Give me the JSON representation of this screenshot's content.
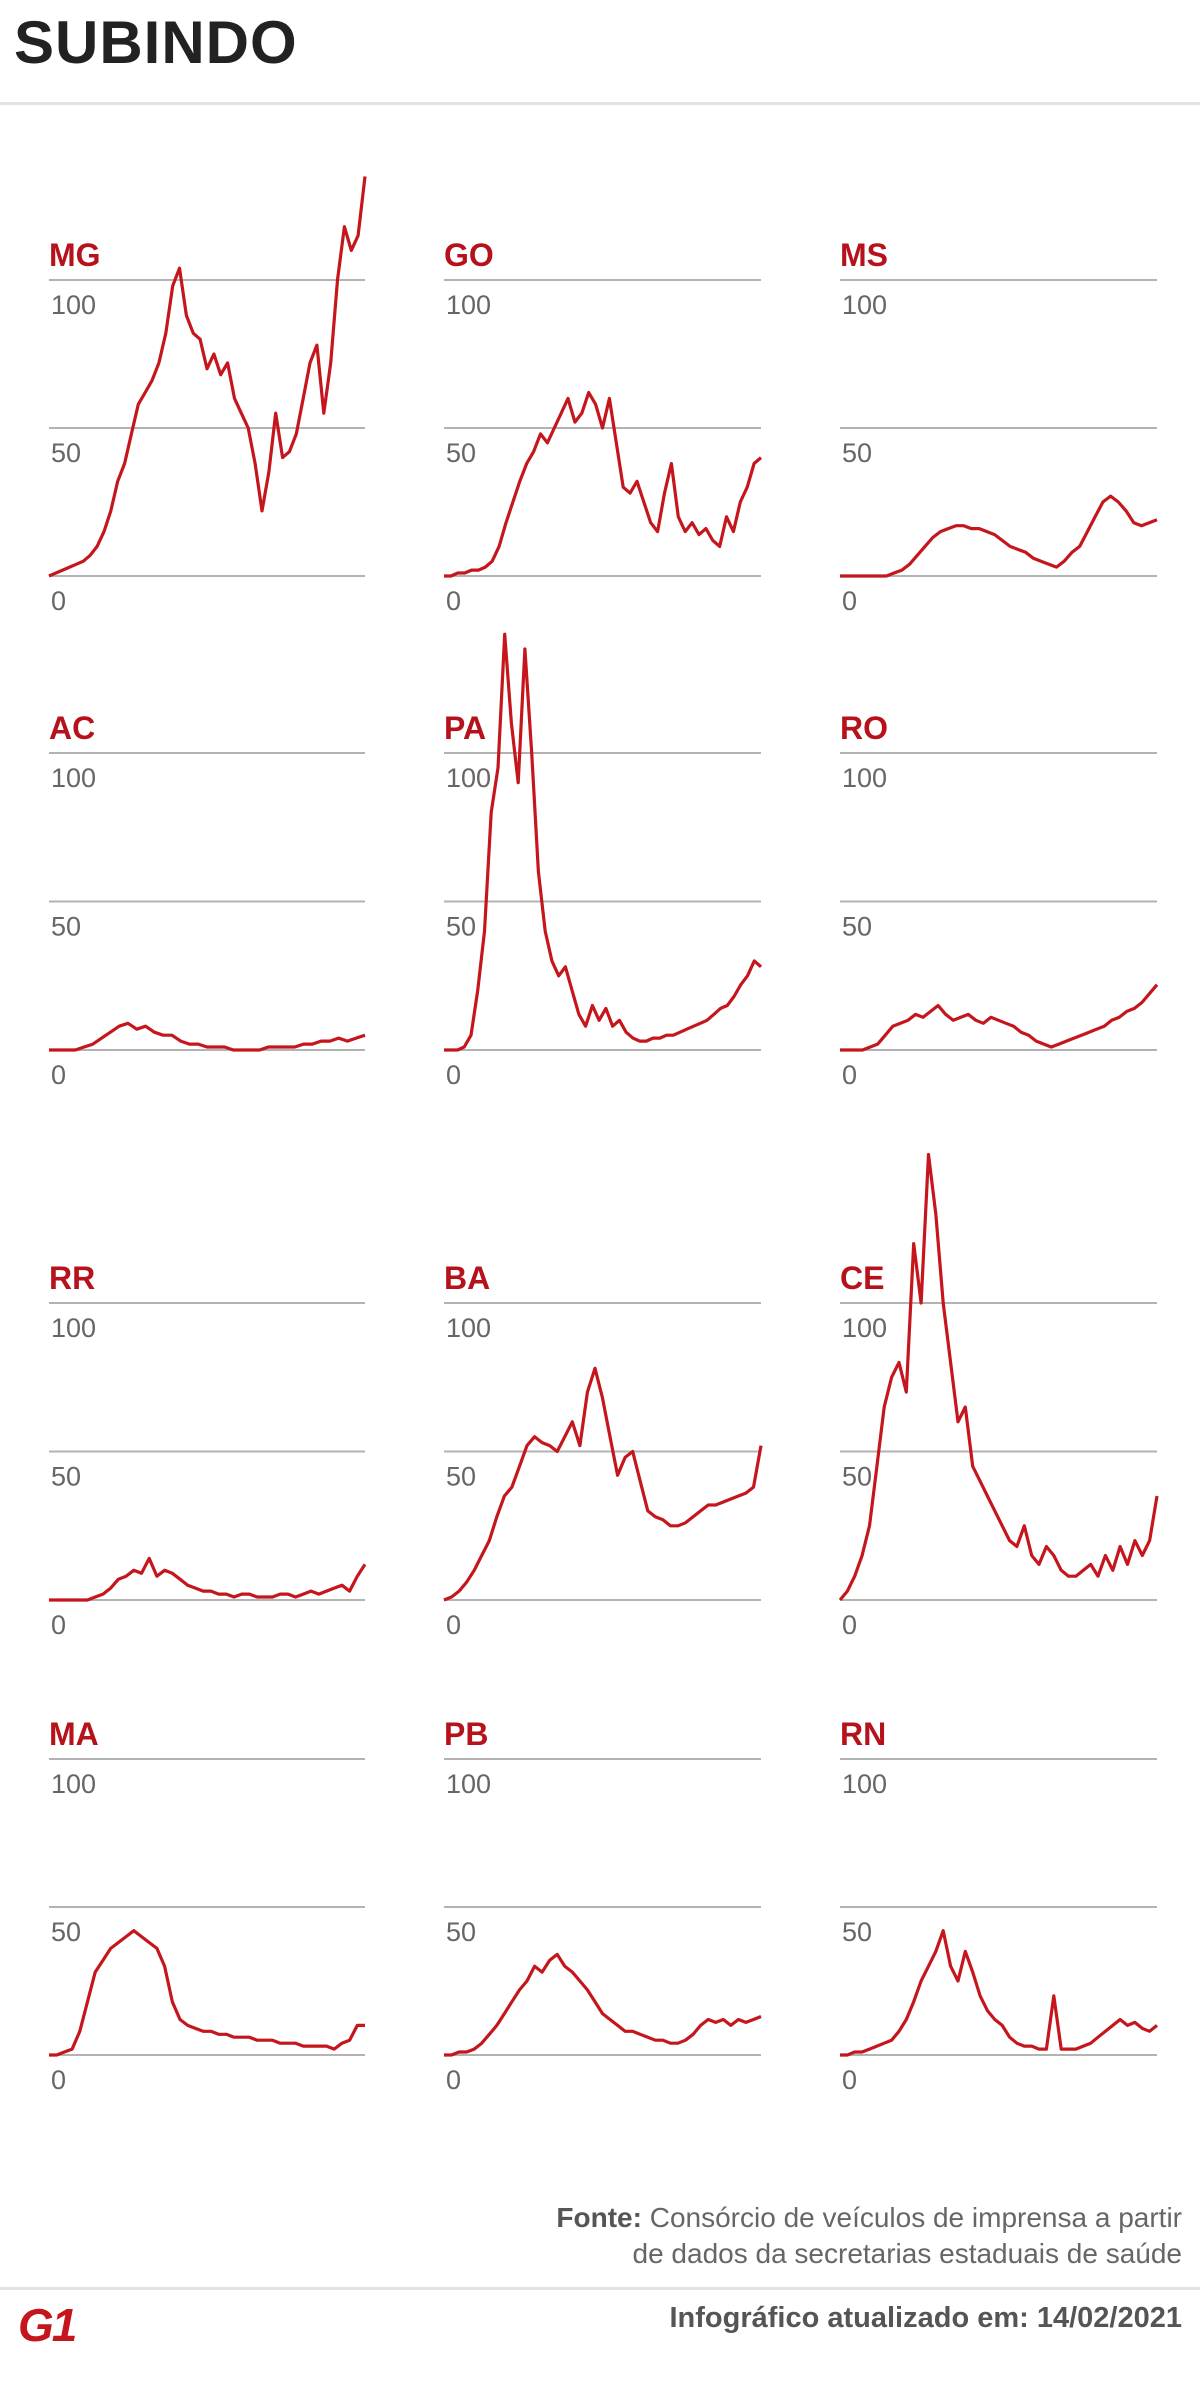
{
  "header": {
    "title": "SUBINDO"
  },
  "footer": {
    "source_label": "Fonte:",
    "source_lines": [
      "Consórcio de veículos de imprensa a partir",
      "de dados da secretarias estaduais de saúde"
    ],
    "updated": "Infográfico atualizado em: 14/02/2021",
    "logo": "G1"
  },
  "chart_data": [
    {
      "type": "line",
      "title": "MG",
      "color": "#c4161c",
      "ylim": [
        0,
        100
      ],
      "yticks": [
        0,
        50,
        100
      ],
      "values": [
        0,
        1,
        2,
        3,
        4,
        5,
        7,
        10,
        15,
        22,
        32,
        38,
        48,
        58,
        62,
        66,
        72,
        82,
        98,
        104,
        88,
        82,
        80,
        70,
        75,
        68,
        72,
        60,
        55,
        50,
        38,
        22,
        35,
        55,
        40,
        42,
        48,
        60,
        72,
        78,
        55,
        72,
        100,
        118,
        110,
        115,
        135
      ]
    },
    {
      "type": "line",
      "title": "GO",
      "color": "#c4161c",
      "ylim": [
        0,
        100
      ],
      "yticks": [
        0,
        50,
        100
      ],
      "values": [
        0,
        0,
        1,
        1,
        2,
        2,
        3,
        5,
        10,
        18,
        25,
        32,
        38,
        42,
        48,
        45,
        50,
        55,
        60,
        52,
        55,
        62,
        58,
        50,
        60,
        45,
        30,
        28,
        32,
        25,
        18,
        15,
        28,
        38,
        20,
        15,
        18,
        14,
        16,
        12,
        10,
        20,
        15,
        25,
        30,
        38,
        40
      ]
    },
    {
      "type": "line",
      "title": "MS",
      "color": "#c4161c",
      "ylim": [
        0,
        100
      ],
      "yticks": [
        0,
        50,
        100
      ],
      "values": [
        0,
        0,
        0,
        0,
        0,
        0,
        0,
        1,
        2,
        4,
        7,
        10,
        13,
        15,
        16,
        17,
        17,
        16,
        16,
        15,
        14,
        12,
        10,
        9,
        8,
        6,
        5,
        4,
        3,
        5,
        8,
        10,
        15,
        20,
        25,
        27,
        25,
        22,
        18,
        17,
        18,
        19
      ]
    },
    {
      "type": "line",
      "title": "AC",
      "color": "#c4161c",
      "ylim": [
        0,
        100
      ],
      "yticks": [
        0,
        50,
        100
      ],
      "values": [
        0,
        0,
        0,
        0,
        1,
        2,
        4,
        6,
        8,
        9,
        7,
        8,
        6,
        5,
        5,
        3,
        2,
        2,
        1,
        1,
        1,
        0,
        0,
        0,
        0,
        1,
        1,
        1,
        1,
        2,
        2,
        3,
        3,
        4,
        3,
        4,
        5
      ]
    },
    {
      "type": "line",
      "title": "PA",
      "color": "#c4161c",
      "ylim": [
        0,
        100
      ],
      "yticks": [
        0,
        50,
        100
      ],
      "values": [
        0,
        0,
        0,
        1,
        5,
        20,
        40,
        80,
        95,
        140,
        110,
        90,
        135,
        100,
        60,
        40,
        30,
        25,
        28,
        20,
        12,
        8,
        15,
        10,
        14,
        8,
        10,
        6,
        4,
        3,
        3,
        4,
        4,
        5,
        5,
        6,
        7,
        8,
        9,
        10,
        12,
        14,
        15,
        18,
        22,
        25,
        30,
        28
      ]
    },
    {
      "type": "line",
      "title": "RO",
      "color": "#c4161c",
      "ylim": [
        0,
        100
      ],
      "yticks": [
        0,
        50,
        100
      ],
      "values": [
        0,
        0,
        0,
        0,
        1,
        2,
        5,
        8,
        9,
        10,
        12,
        11,
        13,
        15,
        12,
        10,
        11,
        12,
        10,
        9,
        11,
        10,
        9,
        8,
        6,
        5,
        3,
        2,
        1,
        2,
        3,
        4,
        5,
        6,
        7,
        8,
        10,
        11,
        13,
        14,
        16,
        19,
        22
      ]
    },
    {
      "type": "line",
      "title": "RR",
      "color": "#c4161c",
      "ylim": [
        0,
        100
      ],
      "yticks": [
        0,
        50,
        100
      ],
      "values": [
        0,
        0,
        0,
        0,
        0,
        0,
        1,
        2,
        4,
        7,
        8,
        10,
        9,
        14,
        8,
        10,
        9,
        7,
        5,
        4,
        3,
        3,
        2,
        2,
        1,
        2,
        2,
        1,
        1,
        1,
        2,
        2,
        1,
        2,
        3,
        2,
        3,
        4,
        5,
        3,
        8,
        12
      ]
    },
    {
      "type": "line",
      "title": "BA",
      "color": "#c4161c",
      "ylim": [
        0,
        100
      ],
      "yticks": [
        0,
        50,
        100
      ],
      "values": [
        0,
        1,
        3,
        6,
        10,
        15,
        20,
        28,
        35,
        38,
        45,
        52,
        55,
        53,
        52,
        50,
        55,
        60,
        52,
        70,
        78,
        68,
        55,
        42,
        48,
        50,
        40,
        30,
        28,
        27,
        25,
        25,
        26,
        28,
        30,
        32,
        32,
        33,
        34,
        35,
        36,
        38,
        52
      ]
    },
    {
      "type": "line",
      "title": "CE",
      "color": "#c4161c",
      "ylim": [
        0,
        100
      ],
      "yticks": [
        0,
        50,
        100
      ],
      "values": [
        0,
        3,
        8,
        15,
        25,
        45,
        65,
        75,
        80,
        70,
        120,
        100,
        150,
        130,
        100,
        80,
        60,
        65,
        45,
        40,
        35,
        30,
        25,
        20,
        18,
        25,
        15,
        12,
        18,
        15,
        10,
        8,
        8,
        10,
        12,
        8,
        15,
        10,
        18,
        12,
        20,
        15,
        20,
        35
      ]
    },
    {
      "type": "line",
      "title": "MA",
      "color": "#c4161c",
      "ylim": [
        0,
        100
      ],
      "yticks": [
        0,
        50,
        100
      ],
      "values": [
        0,
        0,
        1,
        2,
        8,
        18,
        28,
        32,
        36,
        38,
        40,
        42,
        40,
        38,
        36,
        30,
        18,
        12,
        10,
        9,
        8,
        8,
        7,
        7,
        6,
        6,
        6,
        5,
        5,
        5,
        4,
        4,
        4,
        3,
        3,
        3,
        3,
        2,
        4,
        5,
        10,
        10
      ]
    },
    {
      "type": "line",
      "title": "PB",
      "color": "#c4161c",
      "ylim": [
        0,
        100
      ],
      "yticks": [
        0,
        50,
        100
      ],
      "values": [
        0,
        0,
        1,
        1,
        2,
        4,
        7,
        10,
        14,
        18,
        22,
        25,
        30,
        28,
        32,
        34,
        30,
        28,
        25,
        22,
        18,
        14,
        12,
        10,
        8,
        8,
        7,
        6,
        5,
        5,
        4,
        4,
        5,
        7,
        10,
        12,
        11,
        12,
        10,
        12,
        11,
        12,
        13
      ]
    },
    {
      "type": "line",
      "title": "RN",
      "color": "#c4161c",
      "ylim": [
        0,
        100
      ],
      "yticks": [
        0,
        50,
        100
      ],
      "values": [
        0,
        0,
        1,
        1,
        2,
        3,
        4,
        5,
        8,
        12,
        18,
        25,
        30,
        35,
        42,
        30,
        25,
        35,
        28,
        20,
        15,
        12,
        10,
        6,
        4,
        3,
        3,
        2,
        2,
        20,
        2,
        2,
        2,
        3,
        4,
        6,
        8,
        10,
        12,
        10,
        11,
        9,
        8,
        10
      ]
    }
  ]
}
